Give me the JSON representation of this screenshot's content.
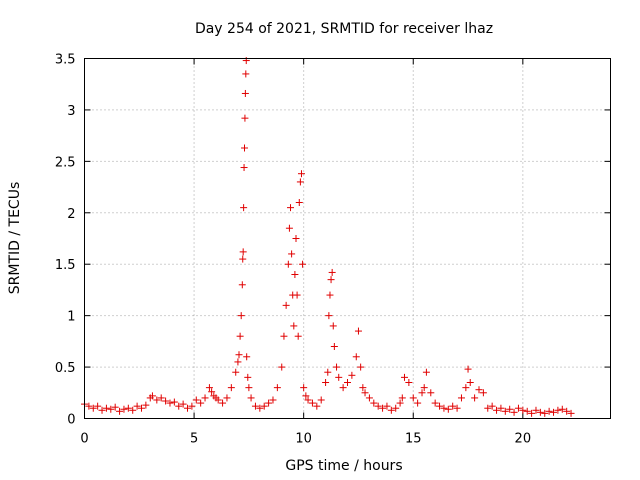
{
  "chart_data": {
    "type": "scatter",
    "title": "Day 254 of 2021, SRMTID for receiver lhaz",
    "xlabel": "GPS time / hours",
    "ylabel": "SRMTID / TECUs",
    "xlim": [
      0,
      24
    ],
    "ylim": [
      0,
      3.5
    ],
    "xticks": [
      0,
      5,
      10,
      15,
      20
    ],
    "xtick_labels": [
      "0",
      "5",
      "10",
      "15",
      "20"
    ],
    "yticks": [
      0,
      0.5,
      1,
      1.5,
      2,
      2.5,
      3,
      3.5
    ],
    "ytick_labels": [
      "0",
      "0.5",
      "1",
      "1.5",
      "2",
      "2.5",
      "3",
      "3.5"
    ],
    "grid": true,
    "marker": "+",
    "color": "#e00000",
    "series": [
      {
        "name": "lhaz",
        "x": [
          0.0,
          0.2,
          0.4,
          0.6,
          0.8,
          1.0,
          1.2,
          1.4,
          1.6,
          1.8,
          2.0,
          2.2,
          2.4,
          2.6,
          2.8,
          3.0,
          3.1,
          3.3,
          3.5,
          3.7,
          3.9,
          4.1,
          4.3,
          4.5,
          4.7,
          4.9,
          5.1,
          5.3,
          5.5,
          5.7,
          5.8,
          5.9,
          6.0,
          6.1,
          6.3,
          6.5,
          6.7,
          6.9,
          7.0,
          7.05,
          7.1,
          7.15,
          7.2,
          7.22,
          7.24,
          7.26,
          7.28,
          7.3,
          7.32,
          7.34,
          7.36,
          7.38,
          7.4,
          7.45,
          7.5,
          7.6,
          7.8,
          8.0,
          8.2,
          8.4,
          8.6,
          8.8,
          9.0,
          9.1,
          9.2,
          9.3,
          9.35,
          9.4,
          9.45,
          9.5,
          9.55,
          9.6,
          9.65,
          9.7,
          9.75,
          9.8,
          9.85,
          9.9,
          9.95,
          10.0,
          10.1,
          10.2,
          10.4,
          10.6,
          10.8,
          11.0,
          11.1,
          11.15,
          11.2,
          11.25,
          11.3,
          11.35,
          11.4,
          11.5,
          11.6,
          11.8,
          12.0,
          12.2,
          12.4,
          12.5,
          12.6,
          12.7,
          12.8,
          13.0,
          13.2,
          13.4,
          13.6,
          13.8,
          14.0,
          14.2,
          14.4,
          14.5,
          14.6,
          14.8,
          15.0,
          15.2,
          15.4,
          15.5,
          15.6,
          15.8,
          16.0,
          16.2,
          16.4,
          16.6,
          16.8,
          17.0,
          17.2,
          17.4,
          17.5,
          17.6,
          17.8,
          18.0,
          18.2,
          18.4,
          18.6,
          18.8,
          19.0,
          19.2,
          19.4,
          19.6,
          19.8,
          20.0,
          20.2,
          20.4,
          20.6,
          20.8,
          21.0,
          21.2,
          21.4,
          21.6,
          21.8,
          22.0,
          22.2
        ],
        "y": [
          0.14,
          0.12,
          0.1,
          0.12,
          0.08,
          0.1,
          0.09,
          0.11,
          0.07,
          0.09,
          0.1,
          0.08,
          0.12,
          0.1,
          0.13,
          0.2,
          0.22,
          0.18,
          0.2,
          0.17,
          0.15,
          0.16,
          0.12,
          0.14,
          0.1,
          0.12,
          0.18,
          0.15,
          0.2,
          0.3,
          0.26,
          0.22,
          0.2,
          0.18,
          0.15,
          0.2,
          0.3,
          0.45,
          0.55,
          0.62,
          0.8,
          1.0,
          1.3,
          1.55,
          1.62,
          2.05,
          2.44,
          2.63,
          2.92,
          3.16,
          3.35,
          3.48,
          0.6,
          0.4,
          0.3,
          0.2,
          0.12,
          0.1,
          0.12,
          0.15,
          0.18,
          0.3,
          0.5,
          0.8,
          1.1,
          1.5,
          1.85,
          2.05,
          1.6,
          1.2,
          0.9,
          1.4,
          1.75,
          1.2,
          0.8,
          2.1,
          2.3,
          2.38,
          1.5,
          0.3,
          0.22,
          0.18,
          0.15,
          0.12,
          0.18,
          0.35,
          0.45,
          1.0,
          1.2,
          1.35,
          1.42,
          0.9,
          0.7,
          0.5,
          0.4,
          0.3,
          0.35,
          0.42,
          0.6,
          0.85,
          0.5,
          0.3,
          0.25,
          0.2,
          0.15,
          0.12,
          0.1,
          0.12,
          0.08,
          0.1,
          0.15,
          0.2,
          0.4,
          0.35,
          0.2,
          0.15,
          0.25,
          0.3,
          0.45,
          0.25,
          0.15,
          0.12,
          0.1,
          0.09,
          0.12,
          0.1,
          0.2,
          0.3,
          0.48,
          0.35,
          0.2,
          0.28,
          0.25,
          0.1,
          0.12,
          0.08,
          0.1,
          0.07,
          0.09,
          0.06,
          0.1,
          0.08,
          0.07,
          0.05,
          0.08,
          0.06,
          0.05,
          0.07,
          0.06,
          0.08,
          0.09,
          0.07,
          0.05
        ]
      }
    ]
  }
}
